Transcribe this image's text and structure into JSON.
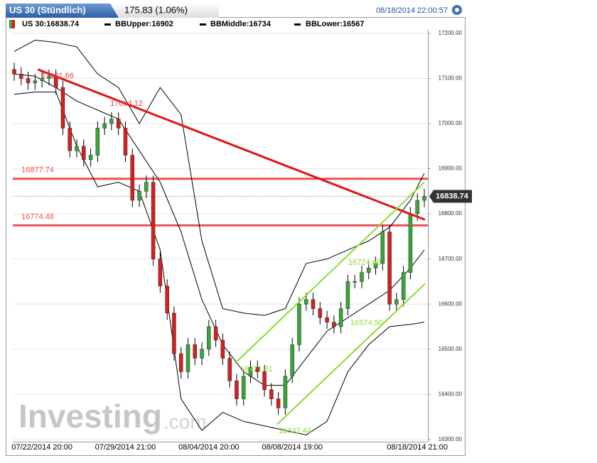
{
  "header": {
    "title": "US 30 (Stündlich)",
    "change": "175.83 (1.06%)",
    "timestamp": "08/18/2014 22:00:57"
  },
  "legend": [
    "US 30:16838.74",
    "BBUpper:16902",
    "BBMiddle:16734",
    "BBLower:16567"
  ],
  "chart_data": {
    "type": "candlestick",
    "categories": [
      null,
      null,
      null,
      null,
      "07/22/2014 20:00",
      null,
      null,
      null,
      null,
      null,
      null,
      null,
      null,
      null,
      null,
      null,
      "07/29/2014 21:00",
      null,
      null,
      null,
      null,
      null,
      null,
      null,
      null,
      null,
      null,
      null,
      "08/04/2014 20:00",
      null,
      null,
      null,
      null,
      null,
      null,
      null,
      null,
      null,
      null,
      null,
      "08/08/2014 19:00",
      null,
      null,
      null,
      null,
      null,
      null,
      null,
      null,
      null,
      null,
      null,
      null,
      null,
      null,
      null,
      null,
      null,
      "08/18/2014 21:00",
      null
    ],
    "open": [
      17120,
      17110,
      17100,
      17090,
      17095,
      17100,
      17105,
      17080,
      16990,
      16940,
      16950,
      16920,
      16930,
      16990,
      17000,
      17010,
      16990,
      16930,
      16830,
      16850,
      16870,
      16700,
      16640,
      16580,
      16490,
      16450,
      16510,
      16480,
      16500,
      16550,
      16520,
      16480,
      16430,
      16390,
      16440,
      16460,
      16450,
      16410,
      16390,
      16370,
      16440,
      16510,
      16600,
      16610,
      16590,
      16570,
      16560,
      16550,
      16590,
      16650,
      16650,
      16670,
      16680,
      16690,
      16760,
      16600,
      16610,
      16670,
      16800,
      16830
    ],
    "high": [
      17135,
      17125,
      17115,
      17110,
      17115,
      17120,
      17120,
      17095,
      17005,
      16965,
      16965,
      16945,
      17005,
      17015,
      17025,
      17025,
      17005,
      16945,
      16865,
      16885,
      16885,
      16715,
      16655,
      16595,
      16505,
      16525,
      16525,
      16515,
      16565,
      16565,
      16535,
      16495,
      16445,
      16455,
      16475,
      16475,
      16465,
      16425,
      16405,
      16455,
      16525,
      16615,
      16625,
      16625,
      16605,
      16585,
      16575,
      16605,
      16665,
      16665,
      16685,
      16695,
      16705,
      16775,
      16775,
      16625,
      16685,
      16815,
      16845,
      16855
    ],
    "low": [
      17095,
      17085,
      17075,
      17075,
      17080,
      17085,
      17065,
      16975,
      16925,
      16925,
      16905,
      16905,
      16915,
      16975,
      16985,
      16975,
      16915,
      16815,
      16815,
      16835,
      16685,
      16625,
      16565,
      16475,
      16435,
      16435,
      16465,
      16465,
      16485,
      16505,
      16465,
      16415,
      16375,
      16375,
      16425,
      16435,
      16395,
      16375,
      16355,
      16355,
      16425,
      16495,
      16585,
      16575,
      16555,
      16545,
      16535,
      16535,
      16575,
      16635,
      16635,
      16655,
      16665,
      16675,
      16585,
      16585,
      16595,
      16655,
      16785,
      16815
    ],
    "close": [
      17110,
      17100,
      17090,
      17095,
      17100,
      17105,
      17080,
      16990,
      16940,
      16950,
      16920,
      16930,
      16990,
      17000,
      17010,
      16990,
      16930,
      16830,
      16850,
      16870,
      16700,
      16640,
      16580,
      16490,
      16450,
      16510,
      16480,
      16500,
      16550,
      16520,
      16480,
      16430,
      16390,
      16440,
      16460,
      16450,
      16410,
      16390,
      16370,
      16440,
      16510,
      16600,
      16610,
      16590,
      16570,
      16560,
      16550,
      16590,
      16650,
      16650,
      16670,
      16680,
      16690,
      16760,
      16600,
      16610,
      16670,
      16800,
      16830,
      16838.74
    ],
    "up_color": "#3aa63a",
    "down_color": "#d62020",
    "bands": [
      {
        "x": [
          0,
          3,
          6,
          9,
          12,
          15,
          18,
          21,
          24,
          27,
          30,
          33,
          36,
          39,
          42,
          45,
          48,
          51,
          54,
          57,
          59
        ],
        "values": [
          17160,
          17185,
          17180,
          17170,
          17110,
          17080,
          17000,
          17080,
          17020,
          16740,
          16590,
          16580,
          16575,
          16590,
          16690,
          16700,
          16720,
          16740,
          16770,
          16830,
          16890
        ],
        "color": "#000000"
      },
      {
        "x": [
          0,
          3,
          6,
          9,
          12,
          15,
          18,
          21,
          24,
          27,
          30,
          33,
          36,
          39,
          42,
          45,
          48,
          51,
          54,
          57,
          59
        ],
        "values": [
          17110,
          17105,
          17080,
          17050,
          17030,
          17010,
          16940,
          16870,
          16760,
          16610,
          16510,
          16450,
          16420,
          16420,
          16480,
          16540,
          16570,
          16600,
          16630,
          16680,
          16720
        ],
        "color": "#000000"
      },
      {
        "x": [
          0,
          3,
          6,
          9,
          12,
          15,
          18,
          21,
          24,
          27,
          30,
          33,
          36,
          39,
          42,
          45,
          48,
          51,
          54,
          57,
          59
        ],
        "values": [
          17065,
          17070,
          17070,
          16950,
          16860,
          16870,
          16850,
          16720,
          16390,
          16320,
          16360,
          16340,
          16330,
          16320,
          16310,
          16340,
          16450,
          16510,
          16550,
          16555,
          16560
        ],
        "color": "#000000"
      }
    ],
    "levels": [
      16877.74,
      16774.48
    ],
    "level_color": "#f05050",
    "trendlines": [
      {
        "x": [
          3.4,
          59.1
        ],
        "y": [
          17120,
          16787
        ],
        "color": "#e01414"
      },
      {
        "x": [
          31.7,
          59
        ],
        "y": [
          16468,
          16870
        ],
        "color": "#88dd33"
      },
      {
        "x": [
          37.8,
          59.1
        ],
        "y": [
          16333,
          16645
        ],
        "color": "#88dd33"
      }
    ],
    "trend_labels": [
      17121.66,
      17064.12,
      16471.81,
      16332.44,
      {
        "value": 16724.6,
        "label": "16724.60"
      },
      {
        "value": 16574.5,
        "label": "16574.50"
      }
    ],
    "last_price": 16838.74,
    "ylim": [
      16295,
      17211
    ],
    "yticks": [
      {
        "value": 16300,
        "label": "16300.00"
      },
      {
        "value": 16400,
        "label": "16400.00"
      },
      {
        "value": 16500,
        "label": "16500.00"
      },
      {
        "value": 16600,
        "label": "16600.00"
      },
      {
        "value": 16700,
        "label": "16700.00"
      },
      {
        "value": 16800,
        "label": "16800.00"
      },
      {
        "value": 16900,
        "label": "16900.00"
      },
      {
        "value": 17000,
        "label": "17000.00"
      },
      {
        "value": 17100,
        "label": "17100.00"
      },
      {
        "value": 17200,
        "label": "17200.00"
      }
    ],
    "grid": true,
    "watermark": {
      "name": "Investing",
      "suffix": ".com"
    }
  }
}
